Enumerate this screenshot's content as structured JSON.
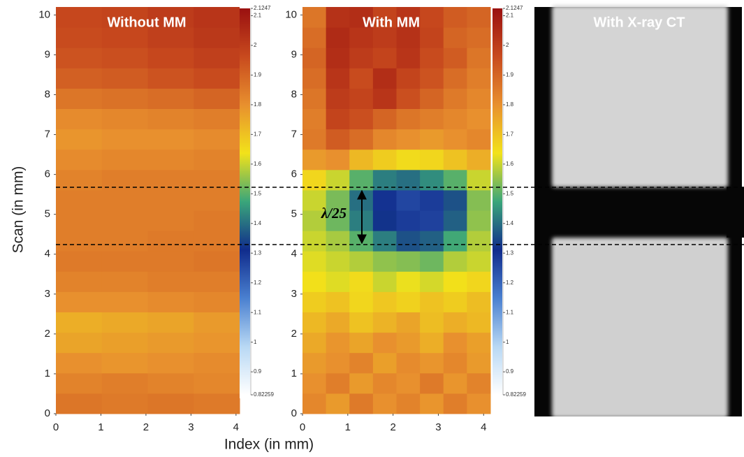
{
  "chart_data": [
    {
      "type": "heatmap",
      "title": "Without MM",
      "x_label": "Index (in mm)",
      "y_label": "Scan (in mm)",
      "xlim": [
        0,
        4.08
      ],
      "ylim": [
        0,
        10.2
      ],
      "xticks": [
        0,
        1,
        2,
        3,
        4
      ],
      "yticks": [
        0,
        1,
        2,
        3,
        4,
        5,
        6,
        7,
        8,
        9,
        10
      ],
      "colormap": [
        "#ffffff",
        "#b8d8f4",
        "#4a80d0",
        "#102c8c",
        "#3aa67a",
        "#f2e21a",
        "#e8902e",
        "#c84a1e",
        "#9a1010"
      ],
      "clim": [
        0.82259,
        2.1247
      ],
      "cticks": [
        0.82259,
        0.9,
        1,
        1.1,
        1.2,
        1.3,
        1.4,
        1.5,
        1.6,
        1.7,
        1.8,
        1.9,
        2,
        2.1,
        2.1247
      ],
      "z": [
        [
          1.86,
          1.85,
          1.86,
          1.85
        ],
        [
          1.83,
          1.84,
          1.83,
          1.82
        ],
        [
          1.8,
          1.79,
          1.8,
          1.81
        ],
        [
          1.76,
          1.77,
          1.78,
          1.79
        ],
        [
          1.74,
          1.75,
          1.76,
          1.78
        ],
        [
          1.8,
          1.8,
          1.81,
          1.82
        ],
        [
          1.83,
          1.83,
          1.84,
          1.84
        ],
        [
          1.85,
          1.85,
          1.85,
          1.86
        ],
        [
          1.84,
          1.84,
          1.85,
          1.85
        ],
        [
          1.84,
          1.84,
          1.84,
          1.85
        ],
        [
          1.84,
          1.84,
          1.84,
          1.84
        ],
        [
          1.83,
          1.84,
          1.84,
          1.84
        ],
        [
          1.81,
          1.82,
          1.82,
          1.83
        ],
        [
          1.79,
          1.8,
          1.8,
          1.81
        ],
        [
          1.81,
          1.82,
          1.83,
          1.84
        ],
        [
          1.86,
          1.87,
          1.88,
          1.9
        ],
        [
          1.91,
          1.92,
          1.94,
          1.96
        ],
        [
          1.94,
          1.95,
          1.97,
          1.99
        ],
        [
          1.96,
          1.97,
          1.99,
          2.01
        ],
        [
          1.97,
          1.98,
          2.0,
          2.02
        ]
      ]
    },
    {
      "type": "heatmap",
      "title": "With MM",
      "annotation": "λ/25",
      "xlim": [
        0,
        4.15
      ],
      "ylim": [
        0,
        10.2
      ],
      "xticks": [
        0,
        1,
        2,
        3,
        4
      ],
      "yticks": [
        0,
        1,
        2,
        3,
        4,
        5,
        6,
        7,
        8,
        9,
        10
      ],
      "colormap": [
        "#ffffff",
        "#b8d8f4",
        "#4a80d0",
        "#102c8c",
        "#3aa67a",
        "#f2e21a",
        "#e8902e",
        "#c84a1e",
        "#9a1010"
      ],
      "clim": [
        0.82259,
        2.1247
      ],
      "cticks": [
        0.82259,
        0.9,
        1,
        1.1,
        1.2,
        1.3,
        1.4,
        1.5,
        1.6,
        1.7,
        1.8,
        1.9,
        2,
        2.1,
        2.1247
      ],
      "z": [
        [
          1.82,
          1.78,
          1.85,
          1.8,
          1.83,
          1.79,
          1.84,
          1.8
        ],
        [
          1.8,
          1.84,
          1.78,
          1.82,
          1.8,
          1.85,
          1.79,
          1.83
        ],
        [
          1.78,
          1.8,
          1.83,
          1.77,
          1.81,
          1.79,
          1.82,
          1.78
        ],
        [
          1.75,
          1.79,
          1.76,
          1.8,
          1.78,
          1.74,
          1.8,
          1.77
        ],
        [
          1.72,
          1.75,
          1.7,
          1.73,
          1.76,
          1.71,
          1.74,
          1.72
        ],
        [
          1.68,
          1.7,
          1.66,
          1.69,
          1.67,
          1.7,
          1.68,
          1.71
        ],
        [
          1.64,
          1.62,
          1.65,
          1.6,
          1.63,
          1.61,
          1.64,
          1.66
        ],
        [
          1.62,
          1.6,
          1.58,
          1.55,
          1.54,
          1.52,
          1.58,
          1.6
        ],
        [
          1.6,
          1.57,
          1.5,
          1.42,
          1.36,
          1.38,
          1.48,
          1.58
        ],
        [
          1.58,
          1.52,
          1.42,
          1.32,
          1.28,
          1.27,
          1.38,
          1.55
        ],
        [
          1.6,
          1.53,
          1.4,
          1.3,
          1.26,
          1.28,
          1.36,
          1.54
        ],
        [
          1.66,
          1.6,
          1.5,
          1.42,
          1.4,
          1.44,
          1.5,
          1.6
        ],
        [
          1.78,
          1.8,
          1.72,
          1.68,
          1.65,
          1.66,
          1.7,
          1.74
        ],
        [
          1.85,
          1.92,
          1.88,
          1.82,
          1.8,
          1.78,
          1.8,
          1.82
        ],
        [
          1.84,
          1.98,
          1.95,
          1.9,
          1.86,
          1.84,
          1.82,
          1.8
        ],
        [
          1.86,
          2.0,
          1.98,
          2.02,
          1.95,
          1.9,
          1.85,
          1.82
        ],
        [
          1.88,
          2.02,
          1.96,
          2.04,
          1.98,
          1.94,
          1.88,
          1.84
        ],
        [
          1.9,
          2.04,
          2.0,
          1.98,
          2.02,
          1.96,
          1.92,
          1.86
        ],
        [
          1.88,
          2.05,
          2.02,
          2.0,
          2.03,
          1.98,
          1.9,
          1.88
        ],
        [
          1.86,
          2.03,
          2.04,
          1.98,
          2.02,
          1.97,
          1.92,
          1.9
        ]
      ]
    },
    {
      "type": "image",
      "title": "With X-ray CT"
    }
  ]
}
